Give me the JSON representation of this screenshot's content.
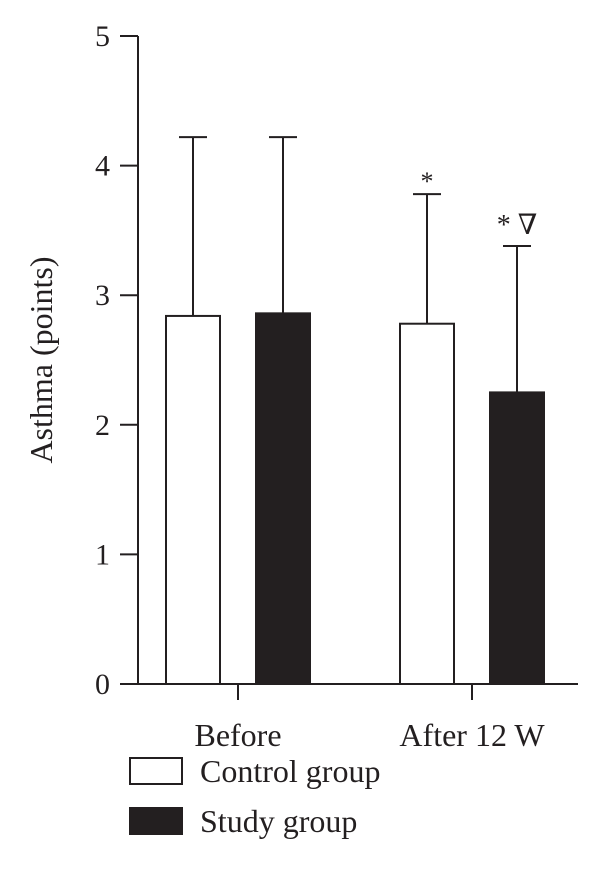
{
  "chart_data": {
    "type": "bar",
    "title": "",
    "xlabel": "",
    "ylabel": "Asthma (points)",
    "ylim": [
      0,
      5
    ],
    "yticks": [
      "0",
      "1",
      "2",
      "3",
      "4",
      "5"
    ],
    "categories": [
      "Before",
      "After 12 W"
    ],
    "series": [
      {
        "name": "Control group",
        "color": "#ffffff",
        "values": [
          2.84,
          2.78
        ],
        "error_upper": [
          4.22,
          3.78
        ],
        "annotations": [
          "",
          "*"
        ]
      },
      {
        "name": "Study group",
        "color": "#231f20",
        "values": [
          2.86,
          2.25
        ],
        "error_upper": [
          4.22,
          3.38
        ],
        "annotations": [
          "",
          "* ∇"
        ]
      }
    ],
    "legend": "bottom-left",
    "grid": false
  }
}
